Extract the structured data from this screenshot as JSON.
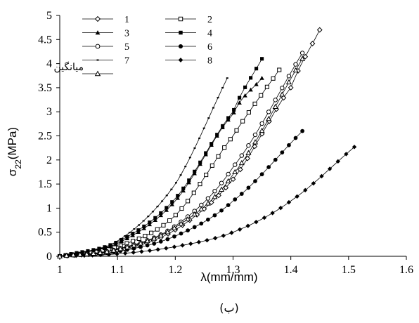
{
  "chart_data": {
    "type": "line",
    "xlabel": "λ(mm/mm)",
    "ylabel": "σ22(MPa)",
    "caption": "(ب)",
    "xlim": [
      1,
      1.6
    ],
    "ylim": [
      0,
      5
    ],
    "xticks": [
      "1",
      "1.1",
      "1.2",
      "1.3",
      "1.4",
      "1.5",
      "1.6"
    ],
    "yticks": [
      "0",
      "0.5",
      "1",
      "1.5",
      "2",
      "2.5",
      "3",
      "3.5",
      "4",
      "4.5",
      "5"
    ],
    "grid": false,
    "legend_position": "top-left",
    "series": [
      {
        "name": "1",
        "marker": "diamond-open",
        "x_end": 1.45,
        "values_at": [
          [
            1.0,
            0
          ],
          [
            1.1,
            0.12
          ],
          [
            1.2,
            0.55
          ],
          [
            1.3,
            1.6
          ],
          [
            1.4,
            3.5
          ],
          [
            1.45,
            4.7
          ]
        ]
      },
      {
        "name": "2",
        "marker": "square-open",
        "x_end": 1.38,
        "values_at": [
          [
            1.0,
            0
          ],
          [
            1.1,
            0.2
          ],
          [
            1.2,
            0.85
          ],
          [
            1.3,
            2.5
          ],
          [
            1.38,
            3.87
          ]
        ]
      },
      {
        "name": "3",
        "marker": "triangle-filled",
        "x_end": 1.35,
        "values_at": [
          [
            1.0,
            0
          ],
          [
            1.1,
            0.27
          ],
          [
            1.2,
            1.15
          ],
          [
            1.3,
            2.95
          ],
          [
            1.35,
            3.7
          ]
        ]
      },
      {
        "name": "4",
        "marker": "square-filled",
        "x_end": 1.35,
        "values_at": [
          [
            1.0,
            0
          ],
          [
            1.1,
            0.3
          ],
          [
            1.2,
            1.2
          ],
          [
            1.3,
            3.0
          ],
          [
            1.35,
            4.1
          ]
        ]
      },
      {
        "name": "5",
        "marker": "circle-open",
        "x_end": 1.42,
        "values_at": [
          [
            1.0,
            0
          ],
          [
            1.1,
            0.15
          ],
          [
            1.2,
            0.63
          ],
          [
            1.3,
            1.85
          ],
          [
            1.42,
            4.22
          ]
        ]
      },
      {
        "name": "6",
        "marker": "circle-filled",
        "x_end": 1.42,
        "values_at": [
          [
            1.0,
            0
          ],
          [
            1.1,
            0.1
          ],
          [
            1.2,
            0.42
          ],
          [
            1.3,
            1.15
          ],
          [
            1.42,
            2.6
          ]
        ]
      },
      {
        "name": "7",
        "marker": "small-dash",
        "x_end": 1.29,
        "values_at": [
          [
            1.0,
            0
          ],
          [
            1.1,
            0.32
          ],
          [
            1.2,
            1.5
          ],
          [
            1.29,
            3.7
          ]
        ]
      },
      {
        "name": "8",
        "marker": "diamond-filled",
        "x_end": 1.51,
        "values_at": [
          [
            1.0,
            0
          ],
          [
            1.1,
            0.05
          ],
          [
            1.2,
            0.2
          ],
          [
            1.3,
            0.5
          ],
          [
            1.4,
            1.15
          ],
          [
            1.51,
            2.27
          ]
        ]
      },
      {
        "name": "میانگین",
        "marker": "triangle-open",
        "x_end": 1.42,
        "values_at": [
          [
            1.0,
            0
          ],
          [
            1.1,
            0.14
          ],
          [
            1.2,
            0.6
          ],
          [
            1.3,
            1.7
          ],
          [
            1.42,
            4.1
          ]
        ]
      }
    ]
  }
}
